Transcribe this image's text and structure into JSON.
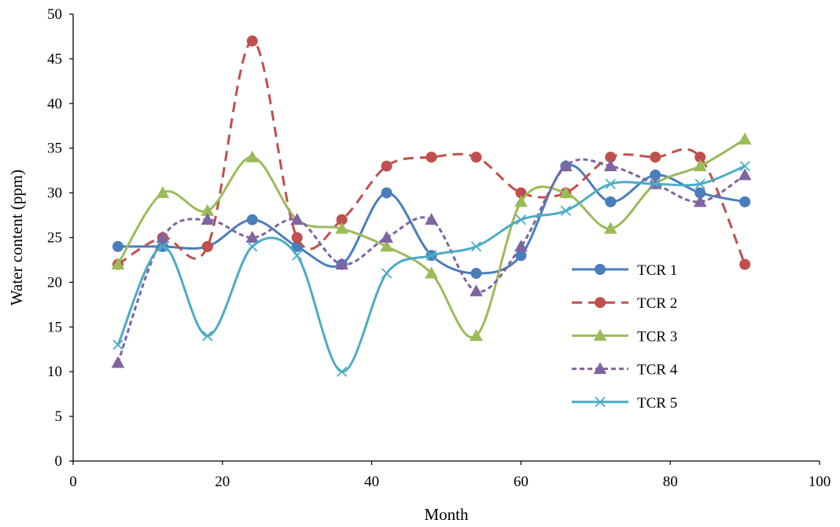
{
  "chart_data": {
    "type": "line",
    "xlabel": "Month",
    "ylabel": "Water content (ppm)",
    "xlim": [
      0,
      100
    ],
    "ylim": [
      0,
      50
    ],
    "xticks": [
      0,
      20,
      40,
      60,
      80,
      100
    ],
    "yticks": [
      0,
      5,
      10,
      15,
      20,
      25,
      30,
      35,
      40,
      45,
      50
    ],
    "grid": false,
    "legend_position": "right",
    "x": [
      6,
      12,
      18,
      24,
      30,
      36,
      42,
      48,
      54,
      60,
      66,
      72,
      78,
      84,
      90
    ],
    "series": [
      {
        "name": "TCR 1",
        "color": "#4a7ebb",
        "marker": "circle",
        "dash": "solid",
        "values": [
          24,
          24,
          24,
          27,
          24,
          22,
          30,
          23,
          21,
          23,
          33,
          29,
          32,
          30,
          29
        ]
      },
      {
        "name": "TCR 2",
        "color": "#c0504d",
        "marker": "circle",
        "dash": "dashed",
        "values": [
          22,
          25,
          24,
          47,
          25,
          27,
          33,
          34,
          34,
          30,
          30,
          34,
          34,
          34,
          22
        ]
      },
      {
        "name": "TCR 3",
        "color": "#9bbb59",
        "marker": "triangle",
        "dash": "solid",
        "values": [
          22,
          30,
          28,
          34,
          27,
          26,
          24,
          21,
          14,
          29,
          30,
          26,
          31,
          33,
          36
        ]
      },
      {
        "name": "TCR 4",
        "color": "#8064a2",
        "marker": "triangle",
        "dash": "dotted",
        "values": [
          11,
          25,
          27,
          25,
          27,
          22,
          25,
          27,
          19,
          24,
          33,
          33,
          31,
          29,
          32
        ]
      },
      {
        "name": "TCR 5",
        "color": "#4bacc6",
        "marker": "x",
        "dash": "solid",
        "values": [
          13,
          24,
          14,
          24,
          23,
          10,
          21,
          23,
          24,
          27,
          28,
          31,
          31,
          31,
          33
        ]
      }
    ]
  }
}
